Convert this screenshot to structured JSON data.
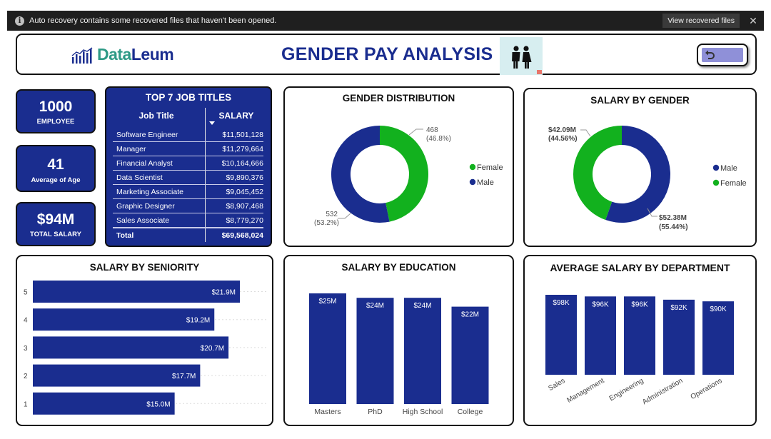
{
  "notification": {
    "message": "Auto recovery contains some recovered files that haven't been opened.",
    "button_label": "View recovered files"
  },
  "header": {
    "logo_a": "Data",
    "logo_b": "Leum",
    "title": "GENDER PAY ANALYSIS"
  },
  "kpis": [
    {
      "value": "1000",
      "label": "EMPLOYEE"
    },
    {
      "value": "41",
      "label": "Average of Age"
    },
    {
      "value": "$94M",
      "label": "TOTAL SALARY"
    }
  ],
  "top_jobs": {
    "title": "TOP 7 JOB TITLES",
    "col1": "Job Title",
    "col2": "SALARY",
    "rows": [
      {
        "title": "Software Engineer",
        "salary": "$11,501,128"
      },
      {
        "title": "Manager",
        "salary": "$11,279,664"
      },
      {
        "title": "Financial Analyst",
        "salary": "$10,164,666"
      },
      {
        "title": "Data Scientist",
        "salary": "$9,890,376"
      },
      {
        "title": "Marketing Associate",
        "salary": "$9,045,452"
      },
      {
        "title": "Graphic Designer",
        "salary": "$8,907,468"
      },
      {
        "title": "Sales Associate",
        "salary": "$8,779,270"
      }
    ],
    "total_label": "Total",
    "total_value": "$69,568,024"
  },
  "colors": {
    "navy": "#1a2d8f",
    "green": "#12b11e",
    "logo_teal": "#2e9a86"
  },
  "chart_data": [
    {
      "type": "pie",
      "title": "GENDER DISTRIBUTION",
      "slices": [
        {
          "name": "Female",
          "value": 468,
          "label": "468",
          "pct": "(46.8%)",
          "color": "#12b11e"
        },
        {
          "name": "Male",
          "value": 532,
          "label": "532",
          "pct": "(53.2%)",
          "color": "#1a2d8f"
        }
      ],
      "legend": [
        "Female",
        "Male"
      ],
      "legend_position": "right"
    },
    {
      "type": "pie",
      "title": "SALARY BY GENDER",
      "slices": [
        {
          "name": "Male",
          "value": 52.38,
          "label": "$52.38M",
          "pct": "(55.44%)",
          "color": "#1a2d8f"
        },
        {
          "name": "Female",
          "value": 42.09,
          "label": "$42.09M",
          "pct": "(44.56%)",
          "color": "#12b11e"
        }
      ],
      "legend": [
        "Male",
        "Female"
      ],
      "legend_position": "right"
    },
    {
      "type": "bar",
      "orientation": "horizontal",
      "title": "SALARY BY SENIORITY",
      "categories": [
        "5",
        "4",
        "3",
        "2",
        "1"
      ],
      "values": [
        21.9,
        19.2,
        20.7,
        17.7,
        15.0
      ],
      "labels": [
        "$21.9M",
        "$19.2M",
        "$20.7M",
        "$17.7M",
        "$15.0M"
      ],
      "xlim": [
        0,
        25
      ]
    },
    {
      "type": "bar",
      "title": "SALARY BY EDUCATION",
      "categories": [
        "Masters",
        "PhD",
        "High School",
        "College"
      ],
      "values": [
        25,
        24,
        24,
        22
      ],
      "labels": [
        "$25M",
        "$24M",
        "$24M",
        "$22M"
      ],
      "ylim": [
        0,
        25
      ]
    },
    {
      "type": "bar",
      "title": "AVERAGE SALARY BY DEPARTMENT",
      "categories": [
        "Sales",
        "Management",
        "Engineering",
        "Administration",
        "Operations"
      ],
      "values": [
        98,
        96,
        96,
        92,
        90
      ],
      "labels": [
        "$98K",
        "$96K",
        "$96K",
        "$92K",
        "$90K"
      ],
      "ylim": [
        0,
        98
      ]
    }
  ]
}
